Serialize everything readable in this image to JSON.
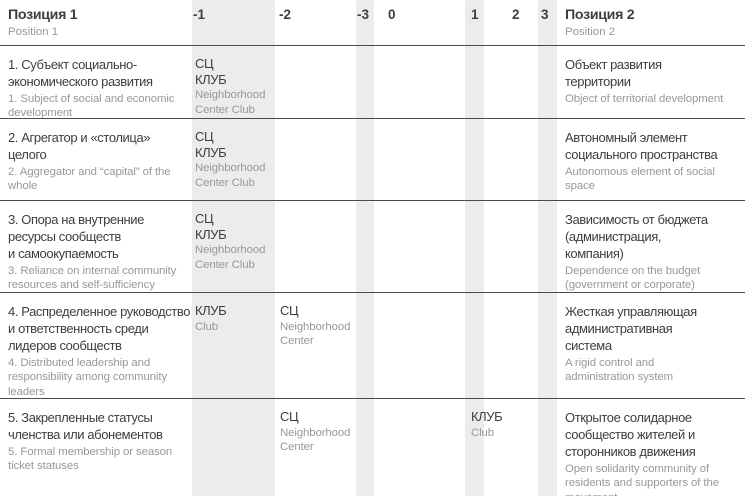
{
  "colors": {
    "text_dark": "#3e3e3e",
    "text_gray": "#989898",
    "stripe": "#ececec",
    "line": "#4a4a4a"
  },
  "header": {
    "left": {
      "title": "Позиция 1",
      "subtitle": "Position 1"
    },
    "right": {
      "title": "Позиция 2",
      "subtitle": "Position 2"
    },
    "scale": [
      "-1",
      "-2",
      "-3",
      "0",
      "1",
      "2",
      "3"
    ]
  },
  "legend": {
    "sc_ru": "СЦ",
    "sc_en": "Neighborhood Center",
    "club_ru": "КЛУБ",
    "club_en": "Club"
  },
  "rows": [
    {
      "pos1_ru": "1. Субъект социально-\nэкономического развития",
      "pos1_en": "1. Subject of social and economic\ndevelopment",
      "cells": {
        "m1": {
          "ru": "СЦ\nКЛУБ",
          "en": "Neighborhood\nCenter Club"
        }
      },
      "pos2_ru": "Объект развития\nтерритории",
      "pos2_en": "Object of territorial development"
    },
    {
      "pos1_ru": "2. Агрегатор и «столица»\nцелого",
      "pos1_en": "2. Aggregator and “capital” of the\nwhole",
      "cells": {
        "m1": {
          "ru": "СЦ\nКЛУБ",
          "en": "Neighborhood\nCenter Club"
        }
      },
      "pos2_ru": "Автономный элемент\nсоциального пространства",
      "pos2_en": "Autonomous element of social\nspace"
    },
    {
      "pos1_ru": "3. Опора на внутренние\nресурсы сообществ\nи самоокупаемость",
      "pos1_en": "3. Reliance on internal community\nresources and self-sufficiency",
      "cells": {
        "m1": {
          "ru": "СЦ\nКЛУБ",
          "en": "Neighborhood\nCenter Club"
        }
      },
      "pos2_ru": "Зависимость от бюджета\n(администрация,\nкомпания)",
      "pos2_en": "Dependence on the budget\n(government or corporate)"
    },
    {
      "pos1_ru": "4. Распределенное руководство\nи ответственность среди\nлидеров сообществ",
      "pos1_en": "4. Distributed leadership and\nresponsibility among community\nleaders",
      "cells": {
        "m1": {
          "ru": "КЛУБ",
          "en": "Club"
        },
        "m2": {
          "ru": "СЦ",
          "en": "Neighborhood\nCenter"
        }
      },
      "pos2_ru": "Жесткая управляющая\nадминистративная\nсистема",
      "pos2_en": "A rigid control and\nadministration system"
    },
    {
      "pos1_ru": "5. Закрепленные статусы\nчленства или абонементов",
      "pos1_en": "5. Formal membership or season\nticket statuses",
      "cells": {
        "m2": {
          "ru": "СЦ",
          "en": "Neighborhood\nCenter"
        },
        "p1": {
          "ru": "КЛУБ",
          "en": "Club"
        }
      },
      "pos2_ru": "Открытое солидарное\nсообщество жителей и\nсторонников движения",
      "pos2_en": "Open solidarity community of\nresidents and supporters of the\nmovement"
    }
  ]
}
